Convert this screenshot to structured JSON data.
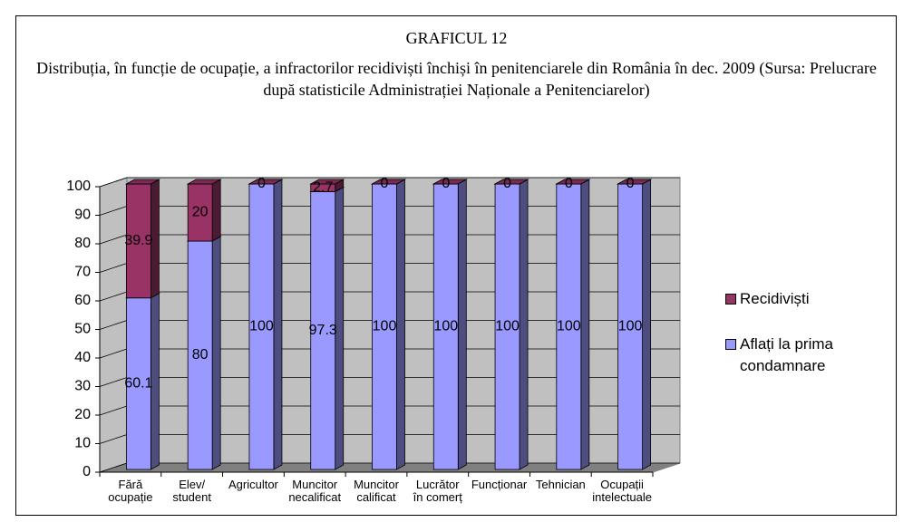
{
  "chart_data": {
    "type": "bar3d_stacked",
    "title": "GRAFICUL 12",
    "subtitle": "Distribuția, în funcție de ocupație, a infractorilor recidiviști închiși în penitenciarele din România în dec. 2009 (Sursa: Prelucrare după statisticile Administrației Naționale a Penitenciarelor)",
    "categories": [
      [
        "Fără",
        "ocupație"
      ],
      [
        "Elev/",
        "student"
      ],
      [
        "Agricultor"
      ],
      [
        "Muncitor",
        "necalificat"
      ],
      [
        "Muncitor",
        "calificat"
      ],
      [
        "Lucrător",
        "în comerț"
      ],
      [
        "Funcționar"
      ],
      [
        "Tehnician"
      ],
      [
        "Ocupații",
        "intelectuale"
      ]
    ],
    "series": [
      {
        "name": "Aflați la prima condamnare",
        "color": "#9999ff",
        "values": [
          60.1,
          80,
          100,
          97.3,
          100,
          100,
          100,
          100,
          100
        ]
      },
      {
        "name": "Recidiviști",
        "color": "#993366",
        "values": [
          39.9,
          20,
          0,
          2.7,
          0,
          0,
          0,
          0,
          0
        ]
      }
    ],
    "ylim": [
      0,
      100
    ],
    "yticks": [
      0,
      10,
      20,
      30,
      40,
      50,
      60,
      70,
      80,
      90,
      100
    ],
    "grid": true,
    "legend": "right"
  }
}
